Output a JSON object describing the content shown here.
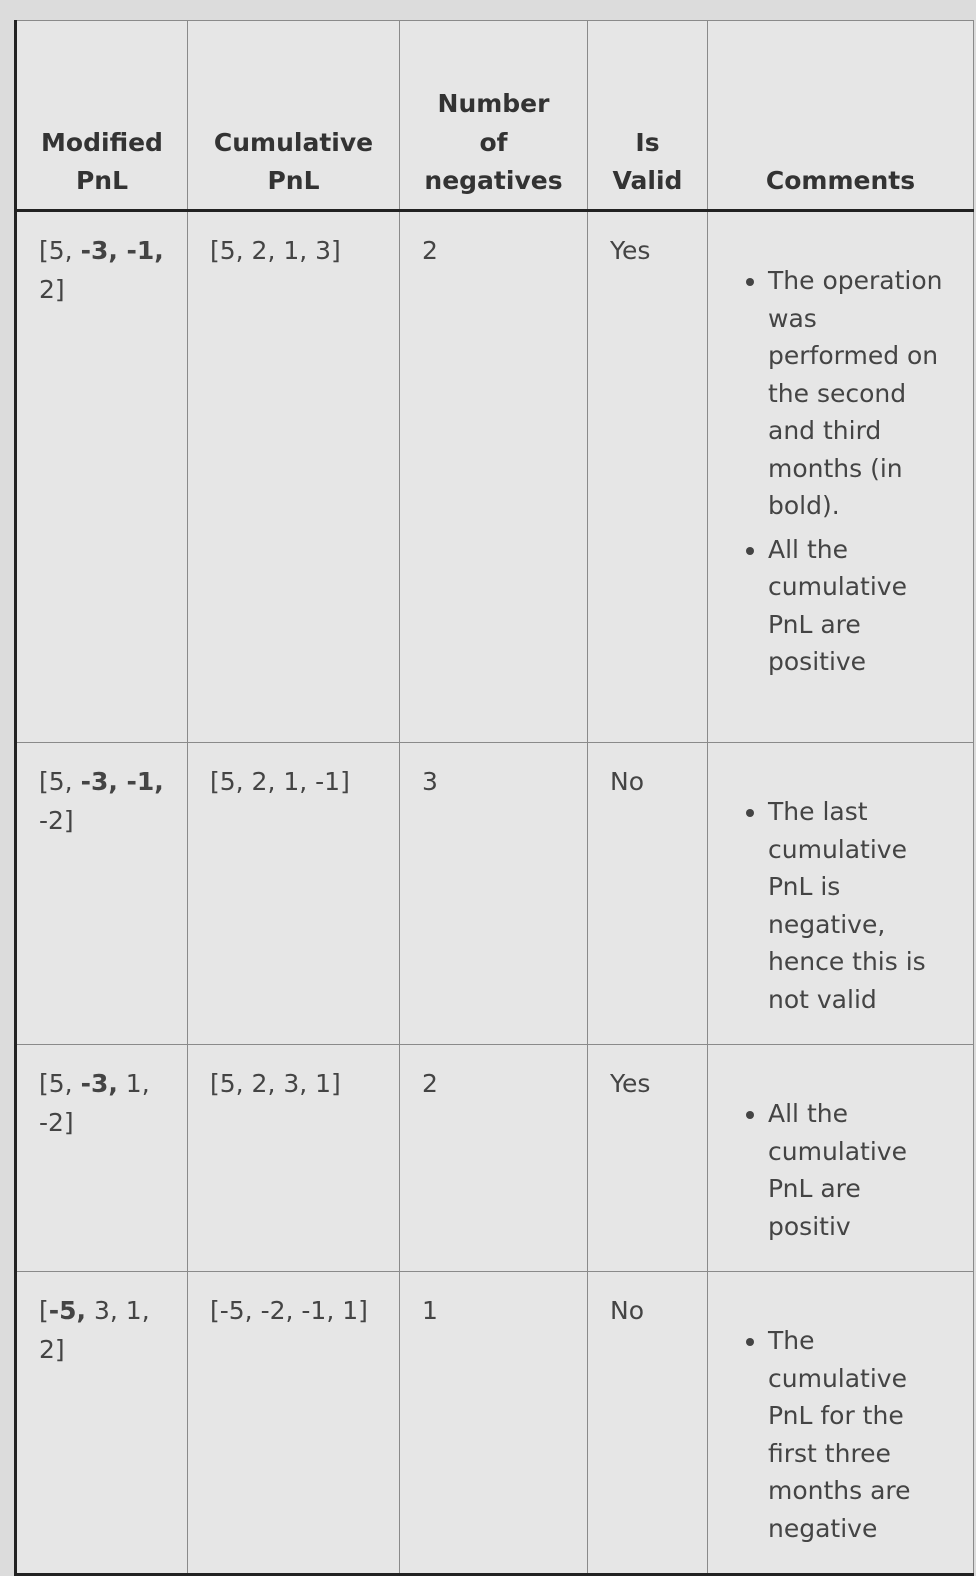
{
  "table": {
    "headers": [
      "Modified PnL",
      "Cumulative PnL",
      "Number of negatives",
      "Is Valid",
      "Comments"
    ],
    "rows": [
      {
        "modified_pnl": [
          {
            "text": "[5, ",
            "bold": false
          },
          {
            "text": "-3, -1,",
            "bold": true
          },
          {
            "text": " 2]",
            "bold": false
          }
        ],
        "cumulative_pnl": "[5, 2, 1, 3]",
        "number_of_negatives": 2,
        "is_valid": "Yes",
        "comments": [
          "The operation was performed on the second and third months (in bold).",
          "All the cumulative PnL are positive"
        ]
      },
      {
        "modified_pnl": [
          {
            "text": "[5, ",
            "bold": false
          },
          {
            "text": "-3, -1,",
            "bold": true
          },
          {
            "text": " -2]",
            "bold": false
          }
        ],
        "cumulative_pnl": "[5, 2, 1, -1]",
        "number_of_negatives": 3,
        "is_valid": "No",
        "comments": [
          "The last cumulative PnL is negative, hence this is not valid"
        ]
      },
      {
        "modified_pnl": [
          {
            "text": "[5, ",
            "bold": false
          },
          {
            "text": "-3,",
            "bold": true
          },
          {
            "text": " 1, -2]",
            "bold": false
          }
        ],
        "cumulative_pnl": "[5, 2, 3, 1]",
        "number_of_negatives": 2,
        "is_valid": "Yes",
        "comments": [
          "All the cumulative PnL are positiv"
        ]
      },
      {
        "modified_pnl": [
          {
            "text": "[",
            "bold": false
          },
          {
            "text": "-5,",
            "bold": true
          },
          {
            "text": " 3, 1, 2]",
            "bold": false
          }
        ],
        "cumulative_pnl": "[-5, -2, -1, 1]",
        "number_of_negatives": 1,
        "is_valid": "No",
        "comments": [
          "The cumulative PnL for the first three months are negative"
        ]
      }
    ]
  }
}
